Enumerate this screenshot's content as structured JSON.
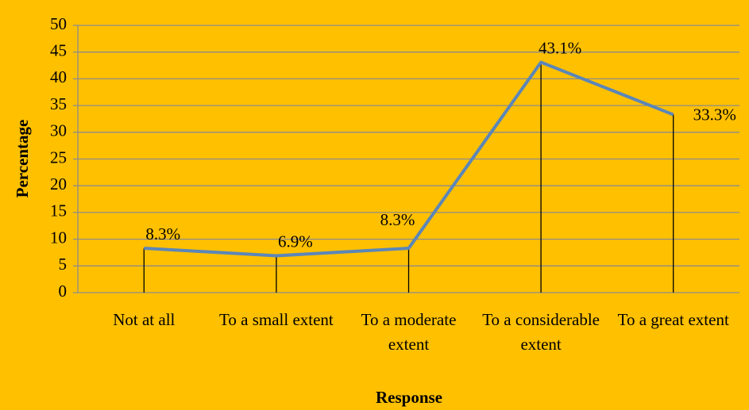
{
  "chart_data": {
    "type": "line",
    "categories": [
      "Not at all",
      "To a small extent",
      "To a moderate extent",
      "To a considerable extent",
      "To a great extent"
    ],
    "values": [
      8.3,
      6.9,
      8.3,
      43.1,
      33.3
    ],
    "value_labels": [
      "8.3%",
      "6.9%",
      "8.3%",
      "43.1%",
      "33.3%"
    ],
    "color": "#5b86b8",
    "xlabel": "Response",
    "ylabel": "Percentage",
    "ylim": [
      0,
      50
    ],
    "yticks": [
      0,
      5,
      10,
      15,
      20,
      25,
      30,
      35,
      40,
      45,
      50
    ],
    "grid": true
  }
}
